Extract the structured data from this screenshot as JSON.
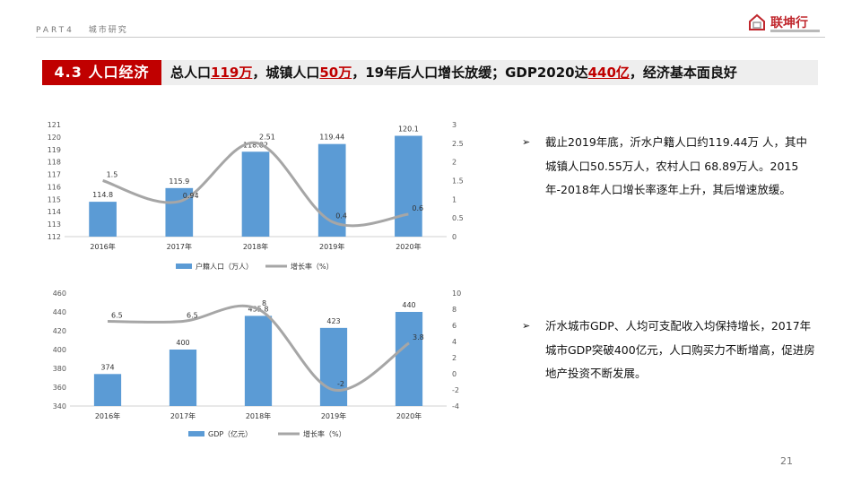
{
  "header": {
    "part": "PART4",
    "section": "城市研究",
    "logo_text": "联坤行"
  },
  "title": {
    "number_label": "4.3 人口经济",
    "headline_parts": [
      {
        "text": "总人口",
        "highlight": false
      },
      {
        "text": "119万",
        "highlight": true
      },
      {
        "text": "，城镇人口",
        "highlight": false
      },
      {
        "text": "50万",
        "highlight": true
      },
      {
        "text": "，19年后人口增长放缓；GDP2020达",
        "highlight": false
      },
      {
        "text": "440亿",
        "highlight": true
      },
      {
        "text": "，经济基本面良好",
        "highlight": false
      }
    ]
  },
  "chart_data": [
    {
      "type": "bar+line",
      "categories": [
        "2016年",
        "2017年",
        "2018年",
        "2019年",
        "2020年"
      ],
      "series": [
        {
          "name": "户籍人口（万人）",
          "type": "bar",
          "axis": "left",
          "values": [
            114.8,
            115.9,
            118.82,
            119.44,
            120.1
          ],
          "labels": [
            "114.8",
            "115.9",
            "118.82",
            "119.44",
            "120.1"
          ]
        },
        {
          "name": "增长率（%）",
          "type": "line",
          "axis": "right",
          "values": [
            1.5,
            0.94,
            2.51,
            0.4,
            0.6
          ],
          "labels": [
            "1.5",
            "0.94",
            "2.51",
            "0.4",
            "0.6"
          ]
        }
      ],
      "ylim_left": [
        112,
        121
      ],
      "yticks_left": [
        112,
        113,
        114,
        115,
        116,
        117,
        118,
        119,
        120,
        121
      ],
      "ylim_right": [
        0,
        3
      ],
      "yticks_right": [
        0,
        0.5,
        1,
        1.5,
        2,
        2.5,
        3
      ],
      "legend_position": "bottom",
      "grid": false,
      "colors": {
        "bar": "#5b9bd5",
        "line": "#a6a6a6"
      }
    },
    {
      "type": "bar+line",
      "categories": [
        "2016年",
        "2017年",
        "2018年",
        "2019年",
        "2020年"
      ],
      "series": [
        {
          "name": "GDP（亿元）",
          "type": "bar",
          "axis": "left",
          "values": [
            374,
            400,
            435.8,
            423,
            440
          ],
          "labels": [
            "374",
            "400",
            "435.8",
            "423",
            "440"
          ]
        },
        {
          "name": "增长率（%）",
          "type": "line",
          "axis": "right",
          "values": [
            6.5,
            6.5,
            8,
            -2,
            3.8
          ],
          "labels": [
            "6.5",
            "6.5",
            "8",
            "-2",
            "3.8"
          ]
        }
      ],
      "ylim_left": [
        340,
        460
      ],
      "yticks_left": [
        340,
        360,
        380,
        400,
        420,
        440,
        460
      ],
      "ylim_right": [
        -4,
        10
      ],
      "yticks_right": [
        -4,
        -2,
        0,
        2,
        4,
        6,
        8,
        10
      ],
      "legend_position": "bottom",
      "grid": false,
      "colors": {
        "bar": "#5b9bd5",
        "line": "#a6a6a6"
      }
    }
  ],
  "bullets": [
    {
      "arrow": "➢",
      "text": "截止2019年底，沂水户籍人口约119.44万 人，其中城镇人口50.55万人，农村人口 68.89万人。2015年-2018年人口增长率逐年上升，其后增速放缓。"
    },
    {
      "arrow": "➢",
      "text": "沂水城市GDP、人均可支配收入均保持增长，2017年城市GDP突破400亿元，人口购买力不断增高，促进房地产投资不断发展。"
    }
  ],
  "page_number": "21"
}
